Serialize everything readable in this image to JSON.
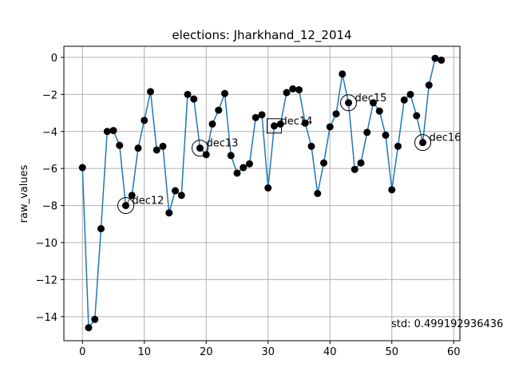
{
  "chart_data": {
    "type": "line",
    "title": "elections: Jharkhand_12_2014",
    "xlabel": "",
    "ylabel": "raw_values",
    "xlim": [
      -3,
      61
    ],
    "ylim": [
      -15.3,
      0.6
    ],
    "xticks": [
      0,
      10,
      20,
      30,
      40,
      50,
      60
    ],
    "yticks": [
      0,
      -2,
      -4,
      -6,
      -8,
      -10,
      -12,
      -14
    ],
    "grid": true,
    "line_color": "#1f77b4",
    "marker_color": "#000000",
    "series": [
      {
        "x": [
          0,
          1,
          2,
          3,
          4,
          5,
          6,
          7,
          8,
          9,
          10,
          11,
          12,
          13,
          14,
          15,
          16,
          17,
          18,
          19,
          20,
          21,
          22,
          23,
          24,
          25,
          26,
          27,
          28,
          29,
          30,
          31,
          32,
          33,
          34,
          35,
          36,
          37,
          38,
          39,
          40,
          41,
          42,
          43,
          44,
          45,
          46,
          47,
          48,
          49,
          50,
          51,
          52,
          53,
          54,
          55,
          56,
          57,
          58
        ],
        "y": [
          -5.95,
          -14.6,
          -14.15,
          -9.25,
          -4.0,
          -3.95,
          -4.75,
          -8.0,
          -7.45,
          -4.9,
          -3.4,
          -1.85,
          -5.0,
          -4.8,
          -8.4,
          -7.2,
          -7.45,
          -2.0,
          -2.25,
          -4.9,
          -5.25,
          -3.6,
          -2.85,
          -1.95,
          -5.3,
          -6.25,
          -5.95,
          -5.75,
          -3.25,
          -3.1,
          -7.05,
          -3.7,
          -3.6,
          -1.9,
          -1.7,
          -1.75,
          -3.55,
          -4.8,
          -7.35,
          -5.7,
          -3.75,
          -3.05,
          -0.9,
          -2.45,
          -6.05,
          -5.7,
          -4.05,
          -2.45,
          -2.9,
          -4.2,
          -7.15,
          -4.8,
          -2.3,
          -2.0,
          -3.15,
          -4.6,
          -1.5,
          -0.05,
          -0.15
        ]
      }
    ],
    "annotations": [
      {
        "label": "dec12",
        "x": 7,
        "y": -8.0,
        "marker": "circle"
      },
      {
        "label": "dec13",
        "x": 19,
        "y": -4.9,
        "marker": "circle"
      },
      {
        "label": "dec14",
        "x": 31,
        "y": -3.7,
        "marker": "square"
      },
      {
        "label": "dec15",
        "x": 43,
        "y": -2.45,
        "marker": "circle"
      },
      {
        "label": "dec16",
        "x": 55,
        "y": -4.6,
        "marker": "circle"
      }
    ],
    "footer_text": "std: 0.499192936436"
  }
}
